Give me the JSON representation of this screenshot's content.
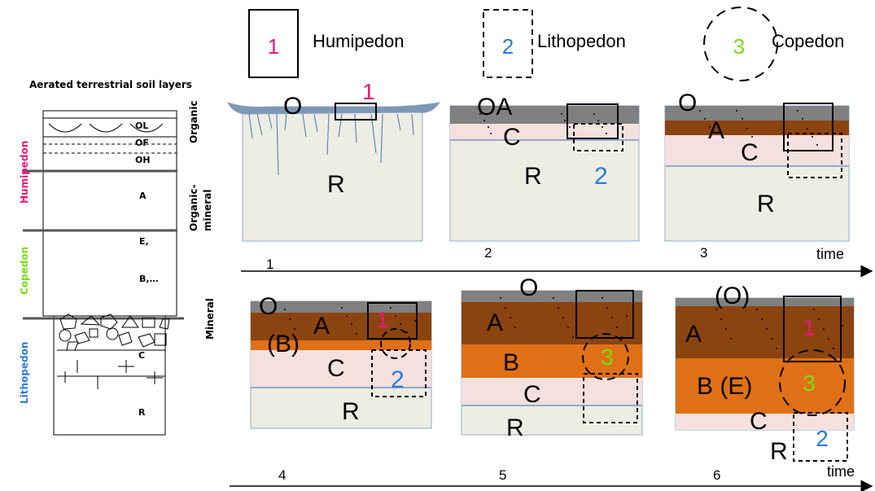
{
  "legend": {
    "humipedon": {
      "num": "1",
      "label": "Humipedon",
      "color": "#e6197a"
    },
    "lithopedon": {
      "num": "2",
      "label": "Lithopedon",
      "color": "#2b7bd8"
    },
    "copedon": {
      "num": "3",
      "label": "Copedon",
      "color": "#77dd11"
    }
  },
  "left_column": {
    "title": "Aerated terrestrial soil layers",
    "zones": {
      "humipedon": "Humipedon",
      "copedon": "Copedon",
      "lithopedon": "Lithopedon"
    },
    "horizons": {
      "ol": "OL",
      "of": "OF",
      "oh": "OH",
      "a": "A",
      "e": "E,",
      "b": "B,…",
      "c": "C",
      "r": "R"
    },
    "categories": {
      "organic1": "Organic",
      "organic2": "Organic-",
      "mineral2": "mineral",
      "mineral": "Mineral"
    }
  },
  "stages": {
    "s1": {
      "number": "1",
      "o": "O",
      "r": "R",
      "marker": "1"
    },
    "s2": {
      "number": "2",
      "oa": "OA",
      "c": "C",
      "r": "R",
      "marker": "2"
    },
    "s3": {
      "number": "3",
      "o": "O",
      "a": "A",
      "c": "C",
      "r": "R"
    },
    "s4": {
      "number": "4",
      "o": "O",
      "a": "A",
      "b": "(B)",
      "c": "C",
      "r": "R",
      "marker1": "1",
      "marker2": "2"
    },
    "s5": {
      "number": "5",
      "o": "O",
      "a": "A",
      "b": "B",
      "c": "C",
      "r": "R",
      "marker3": "3"
    },
    "s6": {
      "number": "6",
      "o": "(O)",
      "a": "A",
      "b": "B (E)",
      "c": "C",
      "r": "R",
      "marker1": "1",
      "marker3": "3",
      "marker2": "2"
    }
  },
  "timeline": {
    "label1": "time",
    "label2": "time"
  },
  "colors": {
    "bedrock": "#eeede3",
    "clay_pink": "#f3e0df",
    "humus_brown": "#8b440f",
    "orange_b": "#e07016",
    "organic_gray": "#808080",
    "frame_blue": "#93aacb"
  }
}
